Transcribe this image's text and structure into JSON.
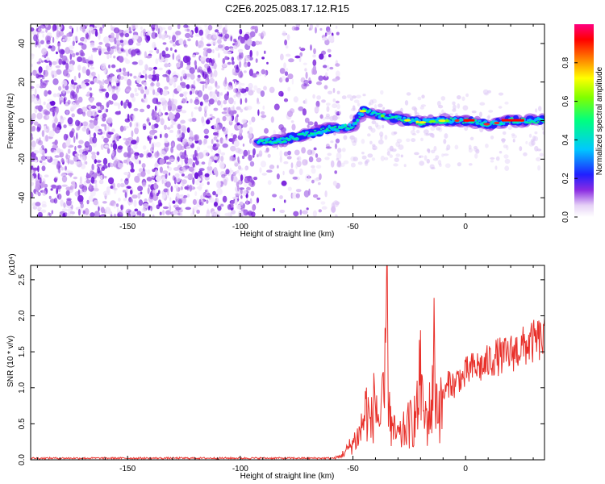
{
  "title": "C2E6.2025.083.17.12.R15",
  "chart_data": [
    {
      "type": "heatmap",
      "title": "C2E6.2025.083.17.12.R15",
      "xlabel": "Height of straight line (km)",
      "ylabel": "Frequency (Hz)",
      "xlim": [
        -193,
        35
      ],
      "ylim": [
        -50,
        50
      ],
      "x_ticks": [
        -150,
        -100,
        -50,
        0
      ],
      "x_tick_labels": [
        "-150",
        "-100",
        "-50",
        "0"
      ],
      "y_ticks": [
        -40,
        -20,
        0,
        20,
        40
      ],
      "y_tick_labels": [
        "-40",
        "-20",
        "0",
        "20",
        "40"
      ],
      "noise_region_x": [
        -193,
        -62
      ],
      "signal_track": {
        "x": [
          -92,
          -80,
          -70,
          -60,
          -55,
          -50,
          -45,
          -40,
          -30,
          -20,
          -10,
          0,
          10,
          20,
          35
        ],
        "y": [
          -11,
          -10,
          -7,
          -4,
          -4,
          -3,
          6,
          3,
          1,
          -1,
          0,
          0,
          -2,
          0,
          0
        ]
      },
      "colorbar": {
        "label": "Normalized spectral amplitude",
        "range": [
          0,
          1
        ],
        "ticks": [
          0.0,
          0.2,
          0.4,
          0.6,
          0.8
        ],
        "tick_labels": [
          "0.0",
          "0.2",
          "0.4",
          "0.6",
          "0.8"
        ],
        "colormap": "rainbow (white-purple-blue-cyan-green-yellow-red-magenta)"
      },
      "grid": false
    },
    {
      "type": "line",
      "xlabel": "Height of straight line (km)",
      "ylabel": "SNR (10 * v/v)",
      "y_multiplier": "(x10⁴)",
      "xlim": [
        -193,
        35
      ],
      "ylim": [
        0,
        2.7
      ],
      "x_ticks": [
        -150,
        -100,
        -50,
        0
      ],
      "x_tick_labels": [
        "-150",
        "-100",
        "-50",
        "0"
      ],
      "y_ticks": [
        0,
        0.5,
        1.0,
        1.5,
        2.0,
        2.5
      ],
      "y_tick_labels": [
        "0.0",
        "0.5",
        "1.0",
        "1.5",
        "2.0",
        "2.5"
      ],
      "color": "#e8302a",
      "series": [
        {
          "x": [
            -193,
            -150,
            -100,
            -70,
            -60,
            -56,
            -53,
            -50,
            -47,
            -44,
            -42,
            -40,
            -38,
            -36,
            -35,
            -34,
            -33,
            -31,
            -29,
            -27,
            -25,
            -23,
            -21,
            -20,
            -19,
            -17,
            -15,
            -14,
            -13,
            -11,
            -9,
            -7,
            -5,
            -3,
            -1,
            0,
            2,
            5,
            8,
            11,
            14,
            17,
            20,
            23,
            26,
            29,
            32,
            35
          ],
          "y": [
            0.0,
            0.0,
            0.0,
            0.0,
            0.02,
            0.05,
            0.15,
            0.3,
            0.45,
            0.9,
            0.6,
            1.15,
            0.7,
            1.2,
            2.7,
            1.4,
            0.6,
            0.5,
            0.45,
            0.6,
            0.7,
            0.8,
            1.0,
            1.8,
            0.9,
            0.8,
            1.1,
            2.25,
            1.2,
            1.0,
            1.0,
            1.2,
            1.1,
            1.25,
            1.2,
            1.3,
            1.35,
            1.4,
            1.4,
            1.5,
            1.55,
            1.55,
            1.6,
            1.65,
            1.7,
            1.75,
            1.8,
            1.8
          ]
        }
      ],
      "grid": false
    }
  ]
}
